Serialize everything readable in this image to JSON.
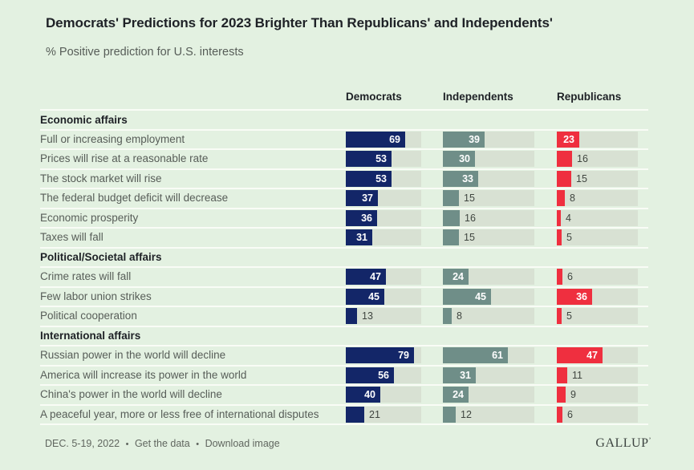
{
  "header": {
    "title": "Democrats' Predictions for 2023 Brighter Than Republicans' and Independents'",
    "subtitle": "% Positive prediction for U.S. interests"
  },
  "colors": {
    "background": "#e3f1e1",
    "track": "#d8e1d3",
    "separator": "#f9fcf6",
    "democrats": "#132668",
    "independents": "#6f8e88",
    "republicans": "#ef2f3f"
  },
  "chart_data": {
    "type": "bar",
    "title": "Democrats' Predictions for 2023 Brighter Than Republicans' and Independents'",
    "subtitle": "% Positive prediction for U.S. interests",
    "unit": "%",
    "value_range": [
      0,
      100
    ],
    "layout": "horizontal grouped bars, one column per party, labels inside bar when wide enough",
    "columns": [
      "Democrats",
      "Independents",
      "Republicans"
    ],
    "series_colors": [
      "#132668",
      "#6f8e88",
      "#ef2f3f"
    ],
    "sections": [
      {
        "header": "Economic affairs",
        "rows": [
          {
            "label": "Full or increasing employment",
            "values": [
              69,
              39,
              23
            ]
          },
          {
            "label": "Prices will rise at a reasonable rate",
            "values": [
              53,
              30,
              16
            ]
          },
          {
            "label": "The stock market will rise",
            "values": [
              53,
              33,
              15
            ]
          },
          {
            "label": "The federal budget deficit will decrease",
            "values": [
              37,
              15,
              8
            ]
          },
          {
            "label": "Economic prosperity",
            "values": [
              36,
              16,
              4
            ]
          },
          {
            "label": "Taxes will fall",
            "values": [
              31,
              15,
              5
            ]
          }
        ]
      },
      {
        "header": "Political/Societal affairs",
        "rows": [
          {
            "label": "Crime rates will fall",
            "values": [
              47,
              24,
              6
            ]
          },
          {
            "label": "Few labor union strikes",
            "values": [
              45,
              45,
              36
            ]
          },
          {
            "label": "Political cooperation",
            "values": [
              13,
              8,
              5
            ]
          }
        ]
      },
      {
        "header": "International affairs",
        "rows": [
          {
            "label": "Russian power in the world will decline",
            "values": [
              79,
              61,
              47
            ]
          },
          {
            "label": "America will increase its power in the world",
            "values": [
              56,
              31,
              11
            ]
          },
          {
            "label": "China's power in the world will decline",
            "values": [
              40,
              24,
              9
            ]
          },
          {
            "label": "A peaceful year, more or less free of international disputes",
            "values": [
              21,
              12,
              6
            ]
          }
        ]
      }
    ]
  },
  "footer": {
    "date": "DEC. 5-19, 2022",
    "get_data_label": "Get the data",
    "download_label": "Download image",
    "brand": "GALLUP"
  }
}
